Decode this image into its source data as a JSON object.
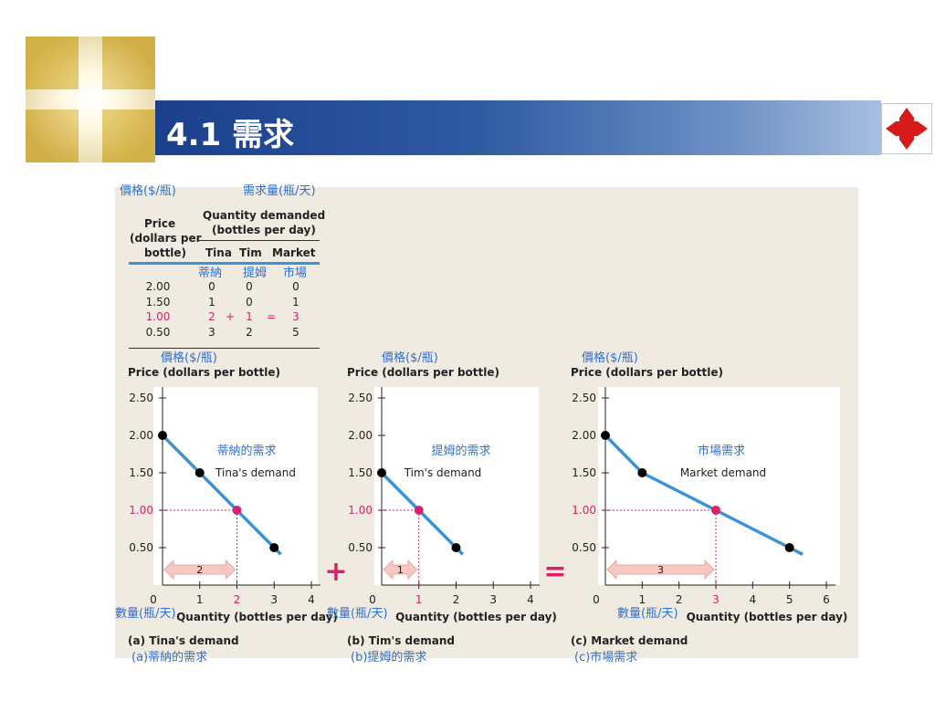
{
  "header": {
    "title": "4.1 需求"
  },
  "table": {
    "annot_price": "價格($/瓶)",
    "annot_qty": "需求量(瓶/天)",
    "price_header": [
      "Price",
      "(dollars per",
      "bottle)"
    ],
    "qty_header": [
      "Quantity demanded",
      "(bottles per day)"
    ],
    "col_tina": "Tina",
    "col_tim": "Tim",
    "col_market": "Market",
    "cn_tina": "蒂納",
    "cn_tim": "提姆",
    "cn_market": "市場",
    "rows": [
      {
        "price": "2.00",
        "tina": "0",
        "tim": "0",
        "market": "0"
      },
      {
        "price": "1.50",
        "tina": "1",
        "tim": "0",
        "market": "1"
      },
      {
        "price": "1.00",
        "tina": "2",
        "tim": "1",
        "market": "3",
        "op1": "+",
        "op2": "="
      },
      {
        "price": "0.50",
        "tina": "3",
        "tim": "2",
        "market": "5"
      }
    ]
  },
  "charts_text": {
    "cn_price": "價格($/瓶)",
    "y_title": "Price (dollars per bottle)",
    "x_title": "Quantity (bottles per day)",
    "cn_qty": "數量(瓶/天)",
    "plus": "+",
    "equals": "="
  },
  "chart_data": [
    {
      "type": "line",
      "caption": "(a) Tina's demand",
      "caption_cn": "(a)蒂納的需求",
      "curve_label": "Tina's demand",
      "curve_label_cn": "蒂納的需求",
      "xlabel": "Quantity (bottles per day)",
      "ylabel": "Price (dollars per bottle)",
      "xlim": [
        0,
        4
      ],
      "ylim": [
        0,
        2.5
      ],
      "xticks": [
        "0",
        "1",
        "2",
        "3",
        "4"
      ],
      "yticks": [
        "0.50",
        "1.00",
        "1.50",
        "2.00",
        "2.50"
      ],
      "points": [
        {
          "x": 0,
          "y": 2.0
        },
        {
          "x": 1,
          "y": 1.5
        },
        {
          "x": 2,
          "y": 1.0
        },
        {
          "x": 3,
          "y": 0.5
        }
      ],
      "highlight": {
        "x": 2,
        "y": 1.0
      },
      "arrow_label": "2"
    },
    {
      "type": "line",
      "caption": "(b) Tim's demand",
      "caption_cn": "(b)提姆的需求",
      "curve_label": "Tim's demand",
      "curve_label_cn": "提姆的需求",
      "xlabel": "Quantity (bottles per day)",
      "ylabel": "Price (dollars per bottle)",
      "xlim": [
        0,
        4
      ],
      "ylim": [
        0,
        2.5
      ],
      "xticks": [
        "0",
        "1",
        "2",
        "3",
        "4"
      ],
      "yticks": [
        "0.50",
        "1.00",
        "1.50",
        "2.00",
        "2.50"
      ],
      "points": [
        {
          "x": 0,
          "y": 1.5
        },
        {
          "x": 1,
          "y": 1.0
        },
        {
          "x": 2,
          "y": 0.5
        }
      ],
      "highlight": {
        "x": 1,
        "y": 1.0
      },
      "arrow_label": "1"
    },
    {
      "type": "line",
      "caption": "(c) Market demand",
      "caption_cn": "(c)市場需求",
      "curve_label": "Market demand",
      "curve_label_cn": "市場需求",
      "xlabel": "Quantity (bottles per day)",
      "ylabel": "Price (dollars per bottle)",
      "xlim": [
        0,
        6
      ],
      "ylim": [
        0,
        2.5
      ],
      "xticks": [
        "0",
        "1",
        "2",
        "3",
        "4",
        "5",
        "6"
      ],
      "yticks": [
        "0.50",
        "1.00",
        "1.50",
        "2.00",
        "2.50"
      ],
      "points": [
        {
          "x": 0,
          "y": 2.0
        },
        {
          "x": 1,
          "y": 1.5
        },
        {
          "x": 3,
          "y": 1.0
        },
        {
          "x": 5,
          "y": 0.5
        }
      ],
      "highlight": {
        "x": 3,
        "y": 1.0
      },
      "arrow_label": "3"
    }
  ],
  "colors": {
    "curve": "#3a93d8",
    "highlight": "#d6236a",
    "arrow": "#f6c8c2",
    "cn_text": "#2f6fd0",
    "panel": "#efebe0"
  }
}
